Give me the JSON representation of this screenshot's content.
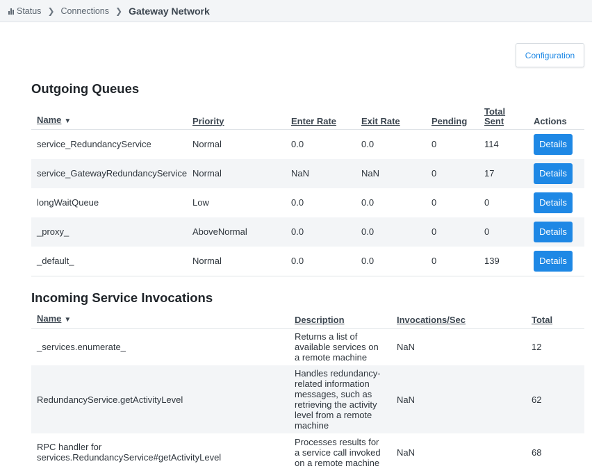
{
  "breadcrumb": {
    "items": [
      "Status",
      "Connections",
      "Gateway Network"
    ]
  },
  "actions": {
    "configuration_label": "Configuration"
  },
  "outgoing": {
    "title": "Outgoing Queues",
    "columns": [
      "Name",
      "Priority",
      "Enter Rate",
      "Exit Rate",
      "Pending",
      "Total Sent",
      "Actions"
    ],
    "details_label": "Details",
    "rows": [
      {
        "name": "service_RedundancyService",
        "priority": "Normal",
        "enter_rate": "0.0",
        "exit_rate": "0.0",
        "pending": "0",
        "total_sent": "114"
      },
      {
        "name": "service_GatewayRedundancyService",
        "priority": "Normal",
        "enter_rate": "NaN",
        "exit_rate": "NaN",
        "pending": "0",
        "total_sent": "17"
      },
      {
        "name": "longWaitQueue",
        "priority": "Low",
        "enter_rate": "0.0",
        "exit_rate": "0.0",
        "pending": "0",
        "total_sent": "0"
      },
      {
        "name": "_proxy_",
        "priority": "AboveNormal",
        "enter_rate": "0.0",
        "exit_rate": "0.0",
        "pending": "0",
        "total_sent": "0"
      },
      {
        "name": "_default_",
        "priority": "Normal",
        "enter_rate": "0.0",
        "exit_rate": "0.0",
        "pending": "0",
        "total_sent": "139"
      }
    ]
  },
  "incoming": {
    "title": "Incoming Service Invocations",
    "columns": [
      "Name",
      "Description",
      "Invocations/Sec",
      "Total"
    ],
    "rows": [
      {
        "name": "_services.enumerate_",
        "description": "Returns a list of available services on a remote machine",
        "rate": "NaN",
        "total": "12"
      },
      {
        "name": "RedundancyService.getActivityLevel",
        "description": "Handles redundancy-related information messages, such as retrieving the activity level from a remote machine",
        "rate": "NaN",
        "total": "62"
      },
      {
        "name": "RPC handler for services.RedundancyService#getActivityLevel",
        "description": "Processes results for a service call invoked on a remote machine",
        "rate": "NaN",
        "total": "68"
      }
    ]
  }
}
